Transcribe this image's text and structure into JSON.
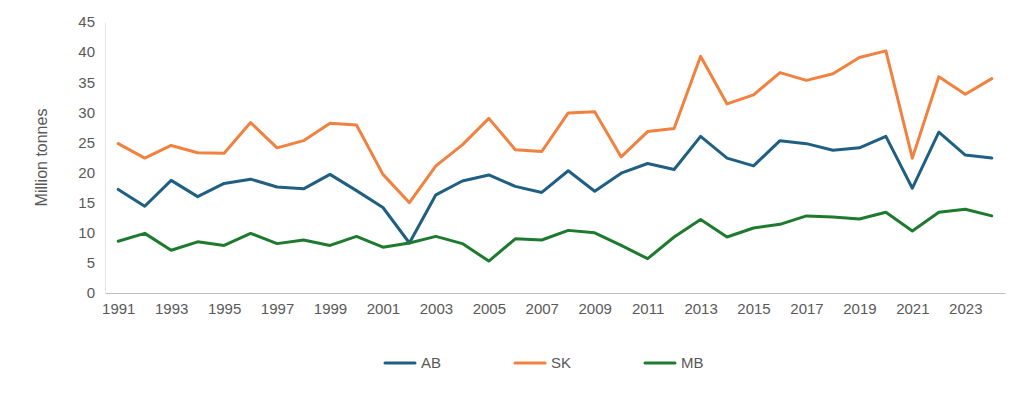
{
  "chart_data": {
    "type": "line",
    "y_label": "Million tonnes",
    "x": [
      1991,
      1992,
      1993,
      1994,
      1995,
      1996,
      1997,
      1998,
      1999,
      2000,
      2001,
      2002,
      2003,
      2004,
      2005,
      2006,
      2007,
      2008,
      2009,
      2010,
      2011,
      2012,
      2013,
      2014,
      2015,
      2016,
      2017,
      2018,
      2019,
      2020,
      2021,
      2022,
      2023,
      2024
    ],
    "series": [
      {
        "name": "AB",
        "color": "#1f5f82",
        "values": [
          17.2,
          14.4,
          18.7,
          16.0,
          18.2,
          18.9,
          17.6,
          17.3,
          19.7,
          17.0,
          14.2,
          8.3,
          16.3,
          18.6,
          19.6,
          17.7,
          16.7,
          20.3,
          16.9,
          19.9,
          21.5,
          20.5,
          26.0,
          22.4,
          21.1,
          25.3,
          24.8,
          23.7,
          24.1,
          26.0,
          17.4,
          26.7,
          22.9,
          22.4
        ]
      },
      {
        "name": "SK",
        "color": "#f0813f",
        "values": [
          24.8,
          22.4,
          24.5,
          23.3,
          23.2,
          28.3,
          24.1,
          25.3,
          28.2,
          27.9,
          19.7,
          15.0,
          21.1,
          24.6,
          29.0,
          23.8,
          23.5,
          29.9,
          30.1,
          22.6,
          26.8,
          27.3,
          39.3,
          31.4,
          32.9,
          36.6,
          35.3,
          36.4,
          39.1,
          40.2,
          22.4,
          35.9,
          33.0,
          35.6
        ]
      },
      {
        "name": "MB",
        "color": "#1e7a2e",
        "values": [
          8.6,
          9.9,
          7.1,
          8.5,
          7.9,
          9.9,
          8.2,
          8.8,
          7.9,
          9.4,
          7.6,
          8.3,
          9.4,
          8.2,
          5.3,
          9.0,
          8.8,
          10.4,
          10.0,
          7.9,
          5.7,
          9.3,
          12.2,
          9.3,
          10.8,
          11.4,
          12.8,
          12.6,
          12.3,
          13.4,
          10.3,
          13.4,
          13.9,
          12.8
        ]
      }
    ],
    "xlim": [
      1990.5,
      2024.5
    ],
    "xticks": [
      1991,
      1993,
      1995,
      1997,
      1999,
      2001,
      2003,
      2005,
      2007,
      2009,
      2011,
      2013,
      2015,
      2017,
      2019,
      2021,
      2023
    ],
    "ylim": [
      0,
      45
    ],
    "yticks": [
      0,
      5,
      10,
      15,
      20,
      25,
      30,
      35,
      40,
      45
    ],
    "grid": false,
    "legend": "bottom"
  }
}
